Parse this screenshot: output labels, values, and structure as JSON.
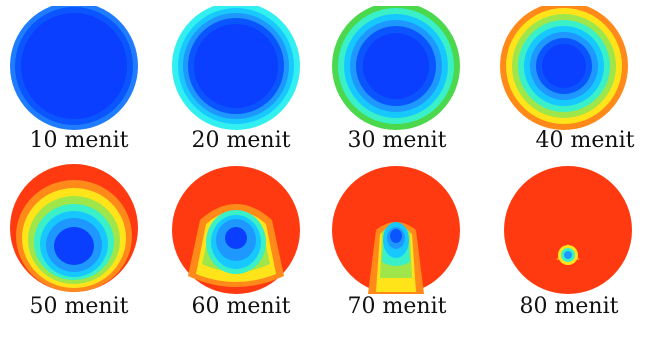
{
  "captions": [
    "10 menit",
    "20 menit",
    "30 menit",
    "40 menit",
    "50 menit",
    "60 menit",
    "70 menit",
    "80 menit"
  ]
}
